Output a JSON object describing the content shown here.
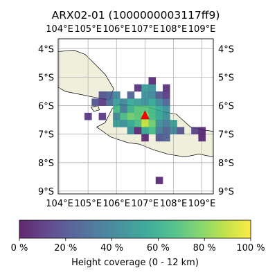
{
  "chart_data": {
    "type": "heatmap",
    "title": "ARX02-01 (1000000003117ff9)",
    "lon_ticks": [
      "104°E",
      "105°E",
      "106°E",
      "107°E",
      "108°E",
      "109°E"
    ],
    "lon_tick_values": [
      104,
      105,
      106,
      107,
      108,
      109
    ],
    "lat_ticks": [
      "4°S",
      "5°S",
      "6°S",
      "7°S",
      "8°S",
      "9°S"
    ],
    "lat_tick_values": [
      -4,
      -5,
      -6,
      -7,
      -8,
      -9
    ],
    "xlim": [
      103.95,
      109.4
    ],
    "ylim": [
      -9.1,
      -3.65
    ],
    "grid": true,
    "cell_size_deg": 0.25,
    "cells": [
      {
        "lon": 107.25,
        "lat": -5.125,
        "value": 5
      },
      {
        "lon": 106.75,
        "lat": -5.375,
        "value": 8
      },
      {
        "lon": 107.0,
        "lat": -5.375,
        "value": 50
      },
      {
        "lon": 107.25,
        "lat": -5.375,
        "value": 45
      },
      {
        "lon": 107.75,
        "lat": -5.375,
        "value": 8
      },
      {
        "lon": 106.5,
        "lat": -5.625,
        "value": 25
      },
      {
        "lon": 107.0,
        "lat": -5.625,
        "value": 45
      },
      {
        "lon": 107.25,
        "lat": -5.625,
        "value": 40
      },
      {
        "lon": 107.5,
        "lat": -5.625,
        "value": 20
      },
      {
        "lon": 107.75,
        "lat": -5.625,
        "value": 10
      },
      {
        "lon": 105.5,
        "lat": -5.625,
        "value": 20
      },
      {
        "lon": 105.75,
        "lat": -5.625,
        "value": 25
      },
      {
        "lon": 106.0,
        "lat": -5.625,
        "value": 40
      },
      {
        "lon": 105.25,
        "lat": -5.875,
        "value": 20
      },
      {
        "lon": 105.5,
        "lat": -5.875,
        "value": 10
      },
      {
        "lon": 105.75,
        "lat": -5.875,
        "value": 30
      },
      {
        "lon": 106.0,
        "lat": -5.875,
        "value": 50
      },
      {
        "lon": 106.25,
        "lat": -5.875,
        "value": 40
      },
      {
        "lon": 106.5,
        "lat": -5.875,
        "value": 55
      },
      {
        "lon": 106.75,
        "lat": -5.875,
        "value": 50
      },
      {
        "lon": 107.0,
        "lat": -5.875,
        "value": 45
      },
      {
        "lon": 107.25,
        "lat": -5.875,
        "value": 55
      },
      {
        "lon": 107.5,
        "lat": -5.875,
        "value": 40
      },
      {
        "lon": 107.75,
        "lat": -5.875,
        "value": 25
      },
      {
        "lon": 106.0,
        "lat": -6.125,
        "value": 65
      },
      {
        "lon": 106.25,
        "lat": -6.125,
        "value": 35
      },
      {
        "lon": 106.5,
        "lat": -6.125,
        "value": 60
      },
      {
        "lon": 106.75,
        "lat": -6.125,
        "value": 70
      },
      {
        "lon": 107.0,
        "lat": -6.125,
        "value": 70
      },
      {
        "lon": 107.25,
        "lat": -6.125,
        "value": 65
      },
      {
        "lon": 107.5,
        "lat": -6.125,
        "value": 55
      },
      {
        "lon": 107.75,
        "lat": -6.125,
        "value": 45
      },
      {
        "lon": 105.5,
        "lat": -6.375,
        "value": 10
      },
      {
        "lon": 106.0,
        "lat": -6.375,
        "value": 40
      },
      {
        "lon": 106.25,
        "lat": -6.375,
        "value": 65
      },
      {
        "lon": 106.5,
        "lat": -6.375,
        "value": 75
      },
      {
        "lon": 106.75,
        "lat": -6.375,
        "value": 70
      },
      {
        "lon": 107.0,
        "lat": -6.375,
        "value": 80
      },
      {
        "lon": 107.25,
        "lat": -6.375,
        "value": 65
      },
      {
        "lon": 107.5,
        "lat": -6.375,
        "value": 55
      },
      {
        "lon": 107.75,
        "lat": -6.375,
        "value": 45
      },
      {
        "lon": 106.0,
        "lat": -6.625,
        "value": 50
      },
      {
        "lon": 106.25,
        "lat": -6.625,
        "value": 45
      },
      {
        "lon": 106.5,
        "lat": -6.625,
        "value": 55
      },
      {
        "lon": 106.75,
        "lat": -6.625,
        "value": 65
      },
      {
        "lon": 107.0,
        "lat": -6.625,
        "value": 90
      },
      {
        "lon": 107.25,
        "lat": -6.625,
        "value": 75
      },
      {
        "lon": 107.5,
        "lat": -6.625,
        "value": 45
      },
      {
        "lon": 107.75,
        "lat": -6.625,
        "value": 35
      },
      {
        "lon": 108.0,
        "lat": -6.625,
        "value": 50
      },
      {
        "lon": 106.5,
        "lat": -6.875,
        "value": 45
      },
      {
        "lon": 106.75,
        "lat": -6.875,
        "value": 5
      },
      {
        "lon": 107.0,
        "lat": -6.875,
        "value": 55
      },
      {
        "lon": 107.25,
        "lat": -6.875,
        "value": 65
      },
      {
        "lon": 107.5,
        "lat": -6.875,
        "value": 35
      },
      {
        "lon": 107.75,
        "lat": -6.875,
        "value": 25
      },
      {
        "lon": 108.0,
        "lat": -6.875,
        "value": 40
      },
      {
        "lon": 108.25,
        "lat": -6.875,
        "value": 20
      },
      {
        "lon": 108.75,
        "lat": -6.875,
        "value": 15
      },
      {
        "lon": 109.0,
        "lat": -6.875,
        "value": 5
      },
      {
        "lon": 107.0,
        "lat": -7.125,
        "value": 5
      },
      {
        "lon": 107.5,
        "lat": -7.125,
        "value": 20
      },
      {
        "lon": 107.75,
        "lat": -7.125,
        "value": 25
      },
      {
        "lon": 109.0,
        "lat": -7.125,
        "value": 5
      },
      {
        "lon": 105.0,
        "lat": -6.375,
        "value": 10
      },
      {
        "lon": 107.5,
        "lat": -8.625,
        "value": 5
      }
    ],
    "marker": {
      "lon": 107.0,
      "lat": -6.35,
      "shape": "triangle",
      "color": "#ff0000"
    },
    "colorbar": {
      "ticks": [
        "0 %",
        "20 %",
        "40 %",
        "60 %",
        "80 %",
        "100 %"
      ],
      "tick_values": [
        0,
        20,
        40,
        60,
        80,
        100
      ],
      "label": "Height coverage (0 - 12 km)",
      "range": [
        0,
        100
      ],
      "colormap": "viridis"
    }
  }
}
